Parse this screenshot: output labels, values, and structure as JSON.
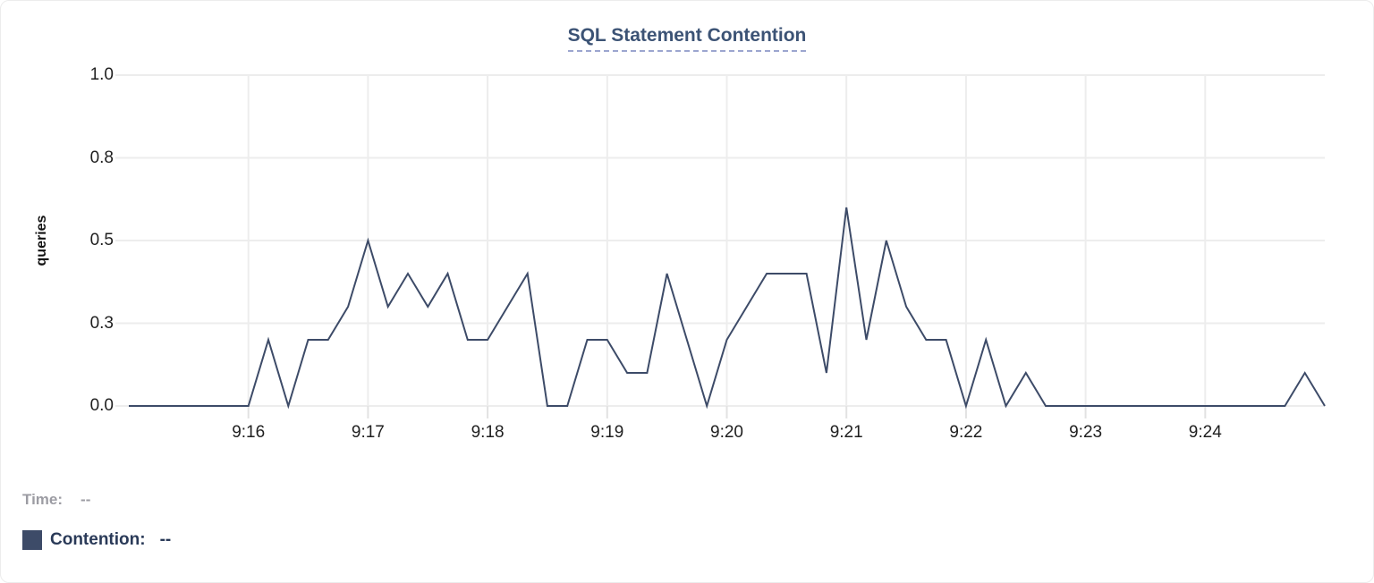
{
  "title": "SQL Statement Contention",
  "colors": {
    "line": "#3D4B68",
    "title": "#3C5375",
    "title_underline": "#9CA6CF",
    "legend_muted": "#9C9CA3",
    "legend_text": "#2A3A58"
  },
  "legend": {
    "time_label": "Time:",
    "time_value": "--",
    "series_label": "Contention:",
    "series_value": "--"
  },
  "chart_data": {
    "type": "line",
    "title": "SQL Statement Contention",
    "xlabel": "",
    "ylabel": "queries",
    "ylim": [
      0,
      1.0
    ],
    "grid": true,
    "legend_position": "bottom-left",
    "y_ticks": [
      {
        "value": 0.0,
        "label": "0.0"
      },
      {
        "value": 0.25,
        "label": "0.3"
      },
      {
        "value": 0.5,
        "label": "0.5"
      },
      {
        "value": 0.75,
        "label": "0.8"
      },
      {
        "value": 1.0,
        "label": "1.0"
      }
    ],
    "x_ticks": [
      "9:16",
      "9:17",
      "9:18",
      "9:19",
      "9:20",
      "9:21",
      "9:22",
      "9:23",
      "9:24"
    ],
    "x": [
      "9:15:00",
      "9:15:10",
      "9:15:20",
      "9:15:30",
      "9:15:40",
      "9:15:50",
      "9:16:00",
      "9:16:10",
      "9:16:20",
      "9:16:30",
      "9:16:40",
      "9:16:50",
      "9:17:00",
      "9:17:10",
      "9:17:20",
      "9:17:30",
      "9:17:40",
      "9:17:50",
      "9:18:00",
      "9:18:10",
      "9:18:20",
      "9:18:30",
      "9:18:40",
      "9:18:50",
      "9:19:00",
      "9:19:10",
      "9:19:20",
      "9:19:30",
      "9:19:40",
      "9:19:50",
      "9:20:00",
      "9:20:10",
      "9:20:20",
      "9:20:30",
      "9:20:40",
      "9:20:50",
      "9:21:00",
      "9:21:10",
      "9:21:20",
      "9:21:30",
      "9:21:40",
      "9:21:50",
      "9:22:00",
      "9:22:10",
      "9:22:20",
      "9:22:30",
      "9:22:40",
      "9:22:50",
      "9:23:00",
      "9:23:10",
      "9:23:20",
      "9:23:30",
      "9:23:40",
      "9:23:50",
      "9:24:00",
      "9:24:10",
      "9:24:20",
      "9:24:30",
      "9:24:40",
      "9:24:50",
      "9:25:00"
    ],
    "series": [
      {
        "name": "Contention",
        "unit": "queries",
        "values": [
          0,
          0,
          0,
          0,
          0,
          0,
          0,
          0.2,
          0,
          0.2,
          0.2,
          0.3,
          0.5,
          0.3,
          0.4,
          0.3,
          0.4,
          0.2,
          0.2,
          0.3,
          0.4,
          0,
          0,
          0.2,
          0.2,
          0.1,
          0.1,
          0.4,
          0.2,
          0,
          0.2,
          0.3,
          0.4,
          0.4,
          0.4,
          0.1,
          0.6,
          0.2,
          0.5,
          0.3,
          0.2,
          0.2,
          0,
          0.2,
          0,
          0.1,
          0,
          0,
          0,
          0,
          0,
          0,
          0,
          0,
          0,
          0,
          0,
          0,
          0,
          0.1,
          0
        ]
      }
    ]
  }
}
